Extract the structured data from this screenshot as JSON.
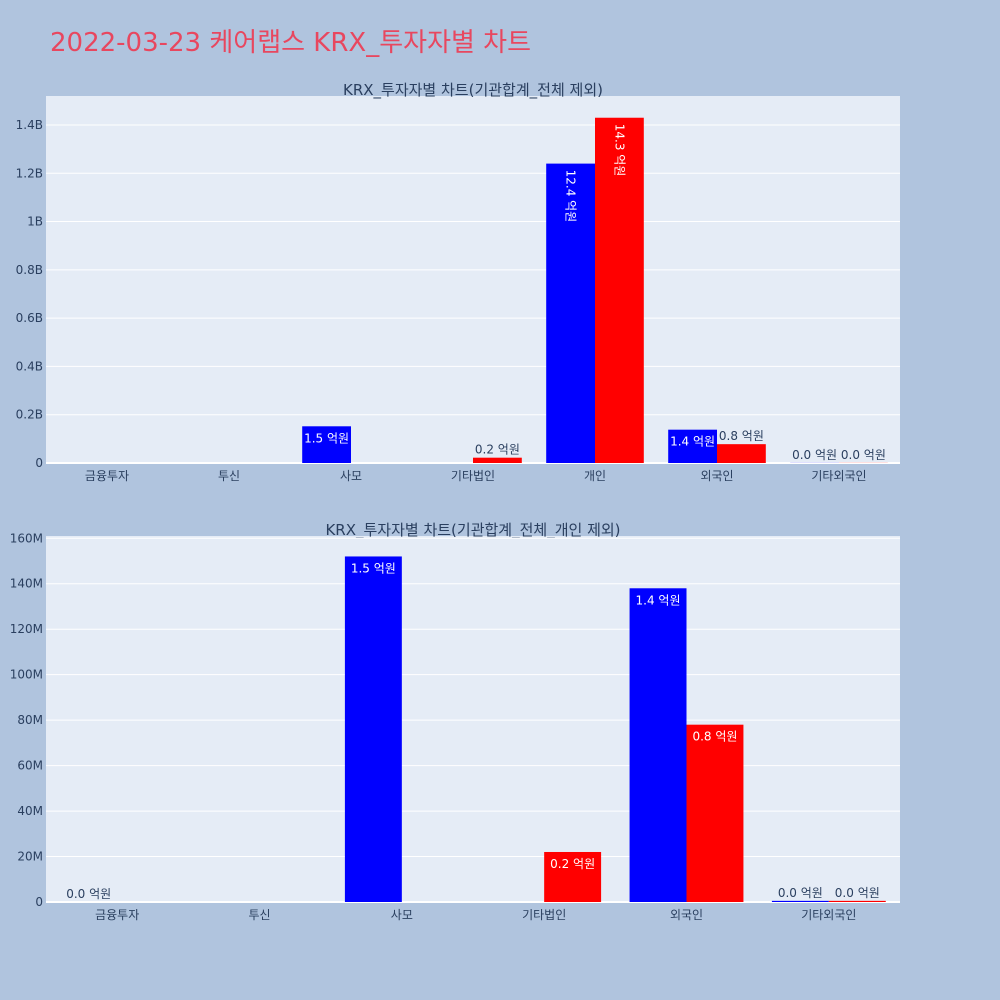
{
  "page_title": "2022-03-23 케어랩스 KRX_투자자별 차트",
  "colors": {
    "buy": "#0000ff",
    "sell": "#ff0000",
    "title": "#e8475f",
    "background": "#b0c4de",
    "plot_bg": "#e5ecf6"
  },
  "chart_data": [
    {
      "type": "bar",
      "title": "KRX_투자자별 차트(기관합계_전체 제외)",
      "categories": [
        "금융투자",
        "투신",
        "사모",
        "기타법인",
        "개인",
        "외국인",
        "기타외국인"
      ],
      "ylim": [
        0,
        1520000000
      ],
      "yticks": [
        0,
        200000000,
        400000000,
        600000000,
        800000000,
        1000000000,
        1200000000,
        1400000000
      ],
      "yticklabels": [
        "0",
        "0.2B",
        "0.4B",
        "0.6B",
        "0.8B",
        "1B",
        "1.2B",
        "1.4B"
      ],
      "grid": true,
      "series": [
        {
          "color": "#0000ff",
          "values": [
            0,
            0,
            152000000,
            0,
            1240000000,
            138000000,
            500000
          ],
          "labels": [
            "",
            "",
            "1.5 억원",
            "",
            "12.4 억원",
            "1.4 억원",
            "0.0 억원"
          ]
        },
        {
          "color": "#ff0000",
          "values": [
            0,
            0,
            0,
            22000000,
            1430000000,
            78000000,
            500000
          ],
          "labels": [
            "",
            "",
            "",
            "0.2 억원",
            "14.3 억원",
            "0.8 억원",
            "0.0 억원"
          ]
        }
      ]
    },
    {
      "type": "bar",
      "title": "KRX_투자자별 차트(기관합계_전체_개인 제외)",
      "categories": [
        "금융투자",
        "투신",
        "사모",
        "기타법인",
        "외국인",
        "기타외국인"
      ],
      "ylim": [
        0,
        161000000
      ],
      "yticks": [
        0,
        20000000,
        40000000,
        60000000,
        80000000,
        100000000,
        120000000,
        140000000,
        160000000
      ],
      "yticklabels": [
        "0",
        "20M",
        "40M",
        "60M",
        "80M",
        "100M",
        "120M",
        "140M",
        "160M"
      ],
      "grid": true,
      "series": [
        {
          "color": "#0000ff",
          "values": [
            0,
            0,
            152000000,
            0,
            138000000,
            500000
          ],
          "labels": [
            "0.0 억원",
            "",
            "1.5 억원",
            "",
            "1.4 억원",
            "0.0 억원"
          ]
        },
        {
          "color": "#ff0000",
          "values": [
            0,
            0,
            0,
            22000000,
            78000000,
            500000
          ],
          "labels": [
            "",
            "",
            "",
            "0.2 억원",
            "0.8 억원",
            "0.0 억원"
          ]
        }
      ]
    }
  ]
}
